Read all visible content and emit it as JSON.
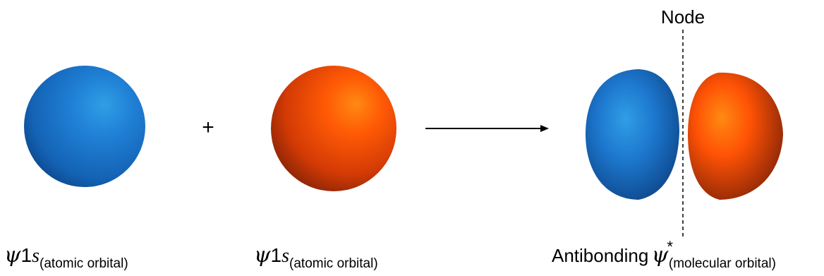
{
  "label_left": {
    "psi": "ψ",
    "one": "1",
    "s": "s",
    "subscript": "(atomic orbital)"
  },
  "label_middle": {
    "psi": "ψ",
    "one": "1",
    "s": "s",
    "subscript": "(atomic orbital)"
  },
  "plus_sign": "+",
  "node_label": "Node",
  "label_right": {
    "prefix": "Antibonding",
    "psi": "ψ",
    "superscript": "*",
    "subscript": "(molecular orbital)"
  },
  "colors": {
    "blue_orbital": "#1a6fc4",
    "orange_orbital": "#ff4a00",
    "arrow": "#000000",
    "node_line": "#000000"
  }
}
